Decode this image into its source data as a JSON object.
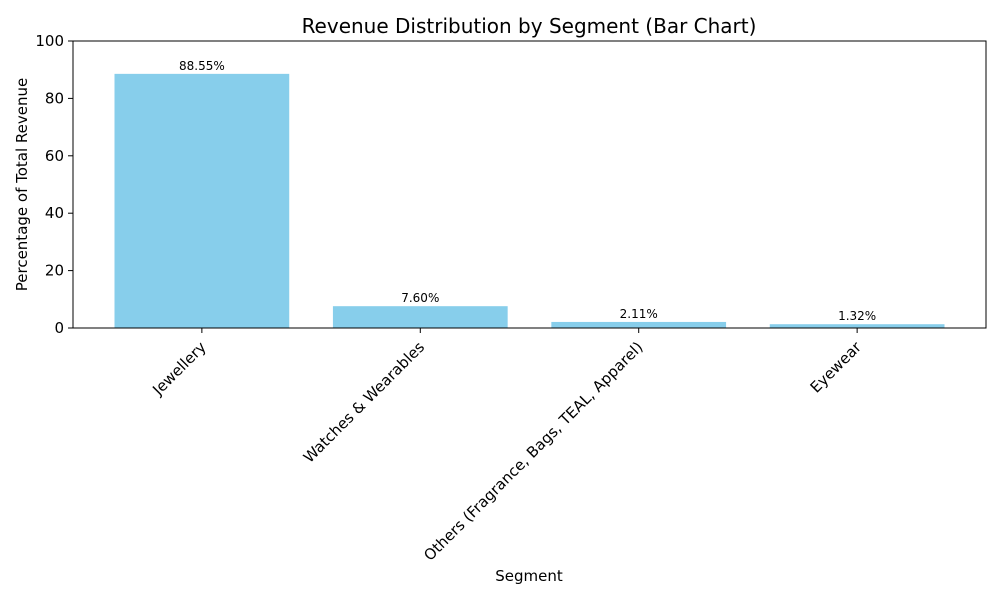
{
  "chart_data": {
    "type": "bar",
    "title": "Revenue Distribution by Segment (Bar Chart)",
    "xlabel": "Segment",
    "ylabel": "Percentage of Total Revenue",
    "categories": [
      "Jewellery",
      "Watches & Wearables",
      "Others (Fragrance, Bags, TEAL, Apparel)",
      "Eyewear"
    ],
    "values": [
      88.55,
      7.6,
      2.11,
      1.32
    ],
    "value_labels": [
      "88.55%",
      "7.60%",
      "2.11%",
      "1.32%"
    ],
    "ylim": [
      0,
      100
    ],
    "yticks": [
      0,
      20,
      40,
      60,
      80,
      100
    ],
    "ytick_labels": [
      "0",
      "20",
      "40",
      "60",
      "80",
      "100"
    ],
    "grid": false,
    "bar_color": "#87CEEB"
  }
}
